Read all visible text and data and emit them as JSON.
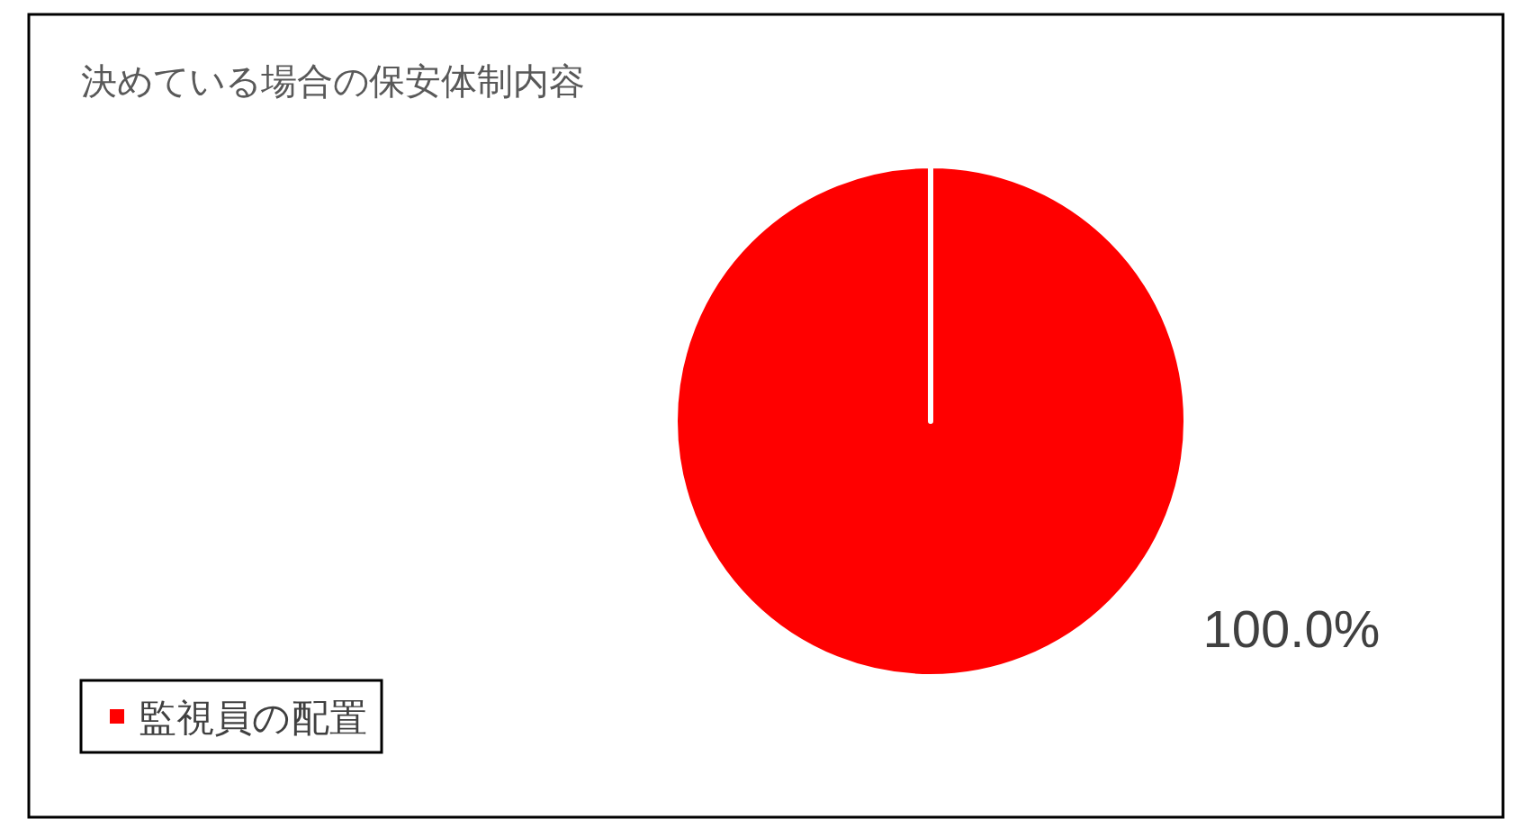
{
  "chart_data": {
    "type": "pie",
    "title": "決めている場合の保安体制内容",
    "categories": [
      "監視員の配置"
    ],
    "values": [
      100
    ],
    "colors": [
      "#ff0000"
    ],
    "value_labels": [
      "100.0%"
    ],
    "legend": "bottom left"
  }
}
